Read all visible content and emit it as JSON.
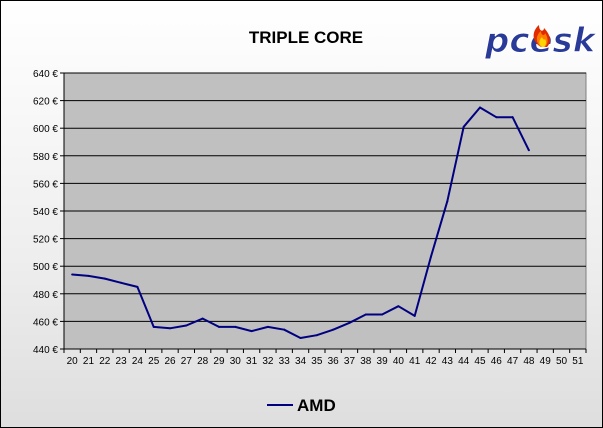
{
  "logo": {
    "text": "pcesk",
    "color": "#2a3a99",
    "flame_colors": [
      "#ffd400",
      "#ff7a00",
      "#e02a00"
    ]
  },
  "colors": {
    "plot_background": "#c0c0c0",
    "series_line": "#000080",
    "gridline": "#000000"
  },
  "chart_data": {
    "type": "line",
    "title": "TRIPLE CORE",
    "xlabel": "",
    "ylabel": "",
    "categories": [
      "20",
      "21",
      "22",
      "23",
      "24",
      "25",
      "26",
      "27",
      "28",
      "29",
      "30",
      "31",
      "32",
      "33",
      "34",
      "35",
      "36",
      "37",
      "38",
      "39",
      "40",
      "41",
      "42",
      "43",
      "44",
      "45",
      "46",
      "47",
      "48",
      "49",
      "50",
      "51"
    ],
    "y_ticks": [
      "440 €",
      "460 €",
      "480 €",
      "500 €",
      "520 €",
      "540 €",
      "560 €",
      "580 €",
      "600 €",
      "620 €",
      "640 €"
    ],
    "ylim": [
      440,
      640
    ],
    "y_unit": "€",
    "grid": "horizontal",
    "legend_position": "bottom",
    "series": [
      {
        "name": "AMD",
        "color": "#000080",
        "values": [
          494,
          493,
          491,
          488,
          485,
          456,
          455,
          457,
          462,
          456,
          456,
          453,
          456,
          454,
          448,
          450,
          454,
          459,
          465,
          465,
          471,
          464,
          507,
          547,
          601,
          615,
          608,
          608,
          584,
          null,
          null,
          null
        ]
      }
    ]
  }
}
